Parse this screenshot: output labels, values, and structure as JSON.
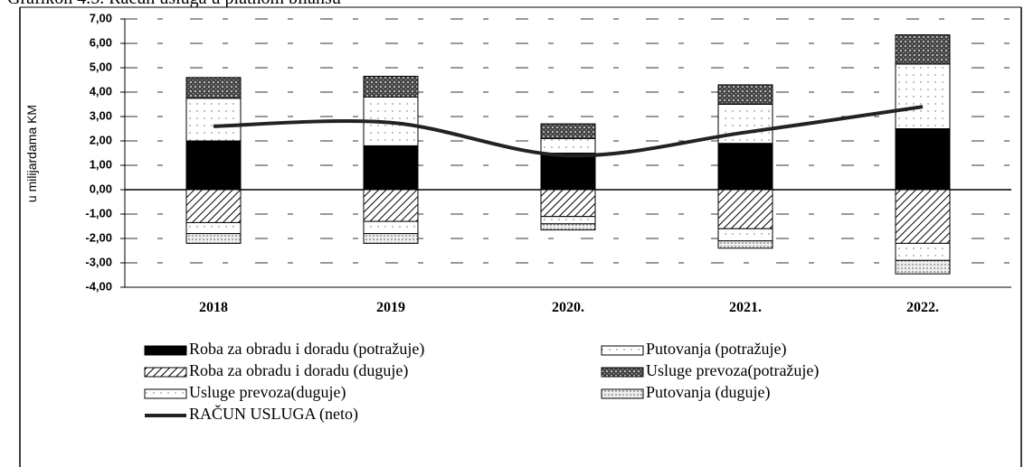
{
  "chart_data": {
    "type": "bar",
    "title": "Grafikon 4.5. Račun usluga u platnom bilansu",
    "ylabel": "u milijardama KM",
    "categories": [
      "2018",
      "2019",
      "2020.",
      "2021.",
      "2022."
    ],
    "stacked": true,
    "series": [
      {
        "name": "Roba za obradu i doradu (potražuje)",
        "color": "#000000",
        "pattern": "solid",
        "values": [
          2.0,
          1.8,
          1.5,
          1.9,
          2.5
        ]
      },
      {
        "name": "Putovanja (potražuje)",
        "color": "#ffffff",
        "pattern": "dots",
        "values": [
          1.75,
          2.0,
          0.6,
          1.6,
          2.65
        ]
      },
      {
        "name": "Roba za obradu i doradu (duguje)",
        "color": "#ffffff",
        "pattern": "hatch",
        "values": [
          -1.35,
          -1.3,
          -1.1,
          -1.6,
          -2.2
        ]
      },
      {
        "name": "Usluge prevoza(potražuje)",
        "color": "#555555",
        "pattern": "stipple",
        "values": [
          0.85,
          0.85,
          0.6,
          0.8,
          1.2
        ]
      },
      {
        "name": "Usluge prevoza(duguje)",
        "color": "#ffffff",
        "pattern": "dots",
        "values": [
          -0.45,
          -0.5,
          -0.3,
          -0.5,
          -0.7
        ]
      },
      {
        "name": "Putovanja (duguje)",
        "color": "#bbbbbb",
        "pattern": "stipple",
        "values": [
          -0.4,
          -0.4,
          -0.25,
          -0.3,
          -0.55
        ]
      }
    ],
    "line": {
      "name": "RAČUN USLUGA (neto)",
      "color": "#222222",
      "values": [
        2.6,
        2.75,
        1.4,
        2.35,
        3.4
      ]
    },
    "ylim": [
      -4,
      7
    ],
    "yticks": [
      {
        "value": -4,
        "label": "-4,00"
      },
      {
        "value": -3,
        "label": "-3,00"
      },
      {
        "value": -2,
        "label": "-2,00"
      },
      {
        "value": -1,
        "label": "-1,00"
      },
      {
        "value": 0,
        "label": "0,00"
      },
      {
        "value": 1,
        "label": "1,00"
      },
      {
        "value": 2,
        "label": "2,00"
      },
      {
        "value": 3,
        "label": "3,00"
      },
      {
        "value": 4,
        "label": "4,00"
      },
      {
        "value": 5,
        "label": "5,00"
      },
      {
        "value": 6,
        "label": "6,00"
      },
      {
        "value": 7,
        "label": "7,00"
      }
    ],
    "grid": true,
    "legend": "bottom"
  }
}
